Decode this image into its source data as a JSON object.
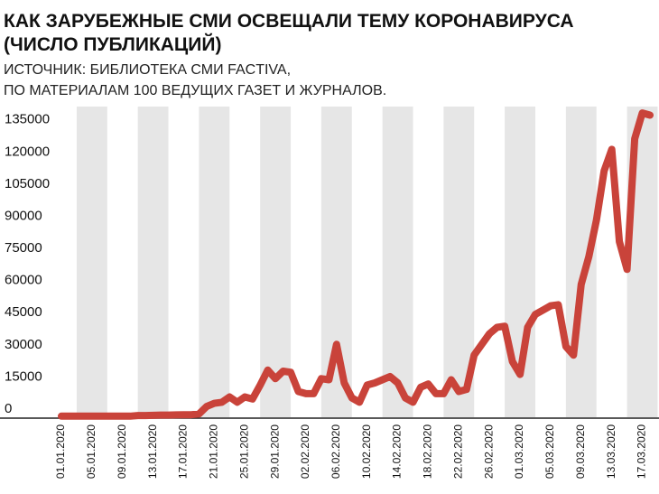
{
  "chart_data": {
    "type": "line",
    "title": [
      "КАК ЗАРУБЕЖНЫЕ СМИ ОСВЕЩАЛИ ТЕМУ КОРОНАВИРУСА",
      "(ЧИСЛО ПУБЛИКАЦИЙ)"
    ],
    "subtitle": [
      "ИСТОЧНИК: БИБЛИОТЕКА СМИ FACTIVA,",
      "ПО МАТЕРИАЛАМ 100 ВЕДУЩИХ ГАЗЕТ И ЖУРНАЛОВ."
    ],
    "categories": [
      "01.01.2020",
      null,
      null,
      null,
      "05.01.2020",
      null,
      null,
      null,
      "09.01.2020",
      null,
      null,
      null,
      "13.01.2020",
      null,
      null,
      null,
      "17.01.2020",
      null,
      null,
      null,
      "21.01.2020",
      null,
      null,
      null,
      "25.01.2020",
      null,
      null,
      null,
      "29.01.2020",
      null,
      null,
      null,
      "02.02.2020",
      null,
      null,
      null,
      "06.02.2020",
      null,
      null,
      null,
      "10.02.2020",
      null,
      null,
      null,
      "14.02.2020",
      null,
      null,
      null,
      "18.02.2020",
      null,
      null,
      null,
      "22.02.2020",
      null,
      null,
      null,
      "26.02.2020",
      null,
      null,
      null,
      "01.03.2020",
      null,
      null,
      null,
      "05.03.2020",
      null,
      null,
      null,
      "09.03.2020",
      null,
      null,
      null,
      "13.03.2020",
      null,
      null,
      null,
      "17.03.2020",
      null
    ],
    "series": [
      {
        "name": "Число публикаций",
        "color": "#c9433a",
        "values": [
          500,
          500,
          500,
          500,
          500,
          500,
          500,
          500,
          500,
          500,
          800,
          800,
          900,
          1000,
          1000,
          1100,
          1200,
          1200,
          1500,
          5000,
          6500,
          7000,
          9500,
          7000,
          9500,
          8500,
          15000,
          22000,
          18000,
          21500,
          21000,
          12000,
          11000,
          11000,
          18000,
          17500,
          34000,
          16000,
          9000,
          7000,
          15000,
          16000,
          17500,
          19000,
          16000,
          9000,
          7000,
          14000,
          15500,
          11000,
          11000,
          17500,
          12000,
          13000,
          29000,
          34000,
          39000,
          42000,
          42500,
          26000,
          20000,
          42000,
          48000,
          50000,
          52000,
          52500,
          33000,
          29000,
          62000,
          75000,
          92000,
          115000,
          125000,
          82000,
          69000,
          130000,
          142000,
          141000
        ]
      }
    ],
    "ylim": [
      0,
      145000
    ],
    "yticks": [
      0,
      15000,
      30000,
      45000,
      60000,
      75000,
      90000,
      105000,
      120000,
      135000
    ]
  }
}
